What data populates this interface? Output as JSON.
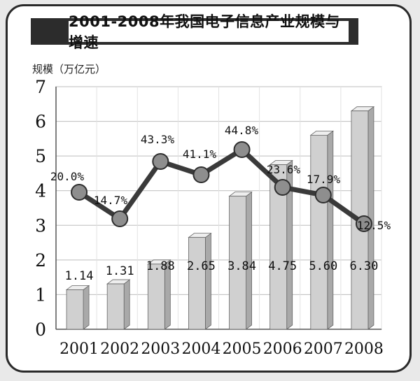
{
  "chart_data": {
    "type": "bar",
    "title": "2001-2008年我国电子信息产业规模与增速",
    "ylabel": "规模（万亿元）",
    "ylim": [
      0,
      7
    ],
    "yticks": [
      0,
      1,
      2,
      3,
      4,
      5,
      6,
      7
    ],
    "grid": true,
    "categories": [
      "2001",
      "2002",
      "2003",
      "2004",
      "2005",
      "2006",
      "2007",
      "2008"
    ],
    "series": [
      {
        "type": "bar",
        "values": [
          1.14,
          1.31,
          1.88,
          2.65,
          3.84,
          4.75,
          5.6,
          6.3
        ],
        "labels": [
          "1.14",
          "1.31",
          "1.88",
          "2.65",
          "3.84",
          "4.75",
          "5.60",
          "6.30"
        ]
      },
      {
        "type": "line",
        "values": [
          20.0,
          14.7,
          43.3,
          41.1,
          44.8,
          23.6,
          17.9,
          12.5
        ],
        "labels": [
          "20.0%",
          "14.7%",
          "43.3%",
          "41.1%",
          "44.8%",
          "23.6%",
          "17.9%",
          "12.5%"
        ]
      }
    ],
    "colors": {
      "bar_front": "#d0d0d0",
      "bar_side": "#a9a9a9",
      "bar_top": "#eeeeee",
      "line": "#3a3a3a",
      "marker": "#8e8e8e"
    }
  }
}
